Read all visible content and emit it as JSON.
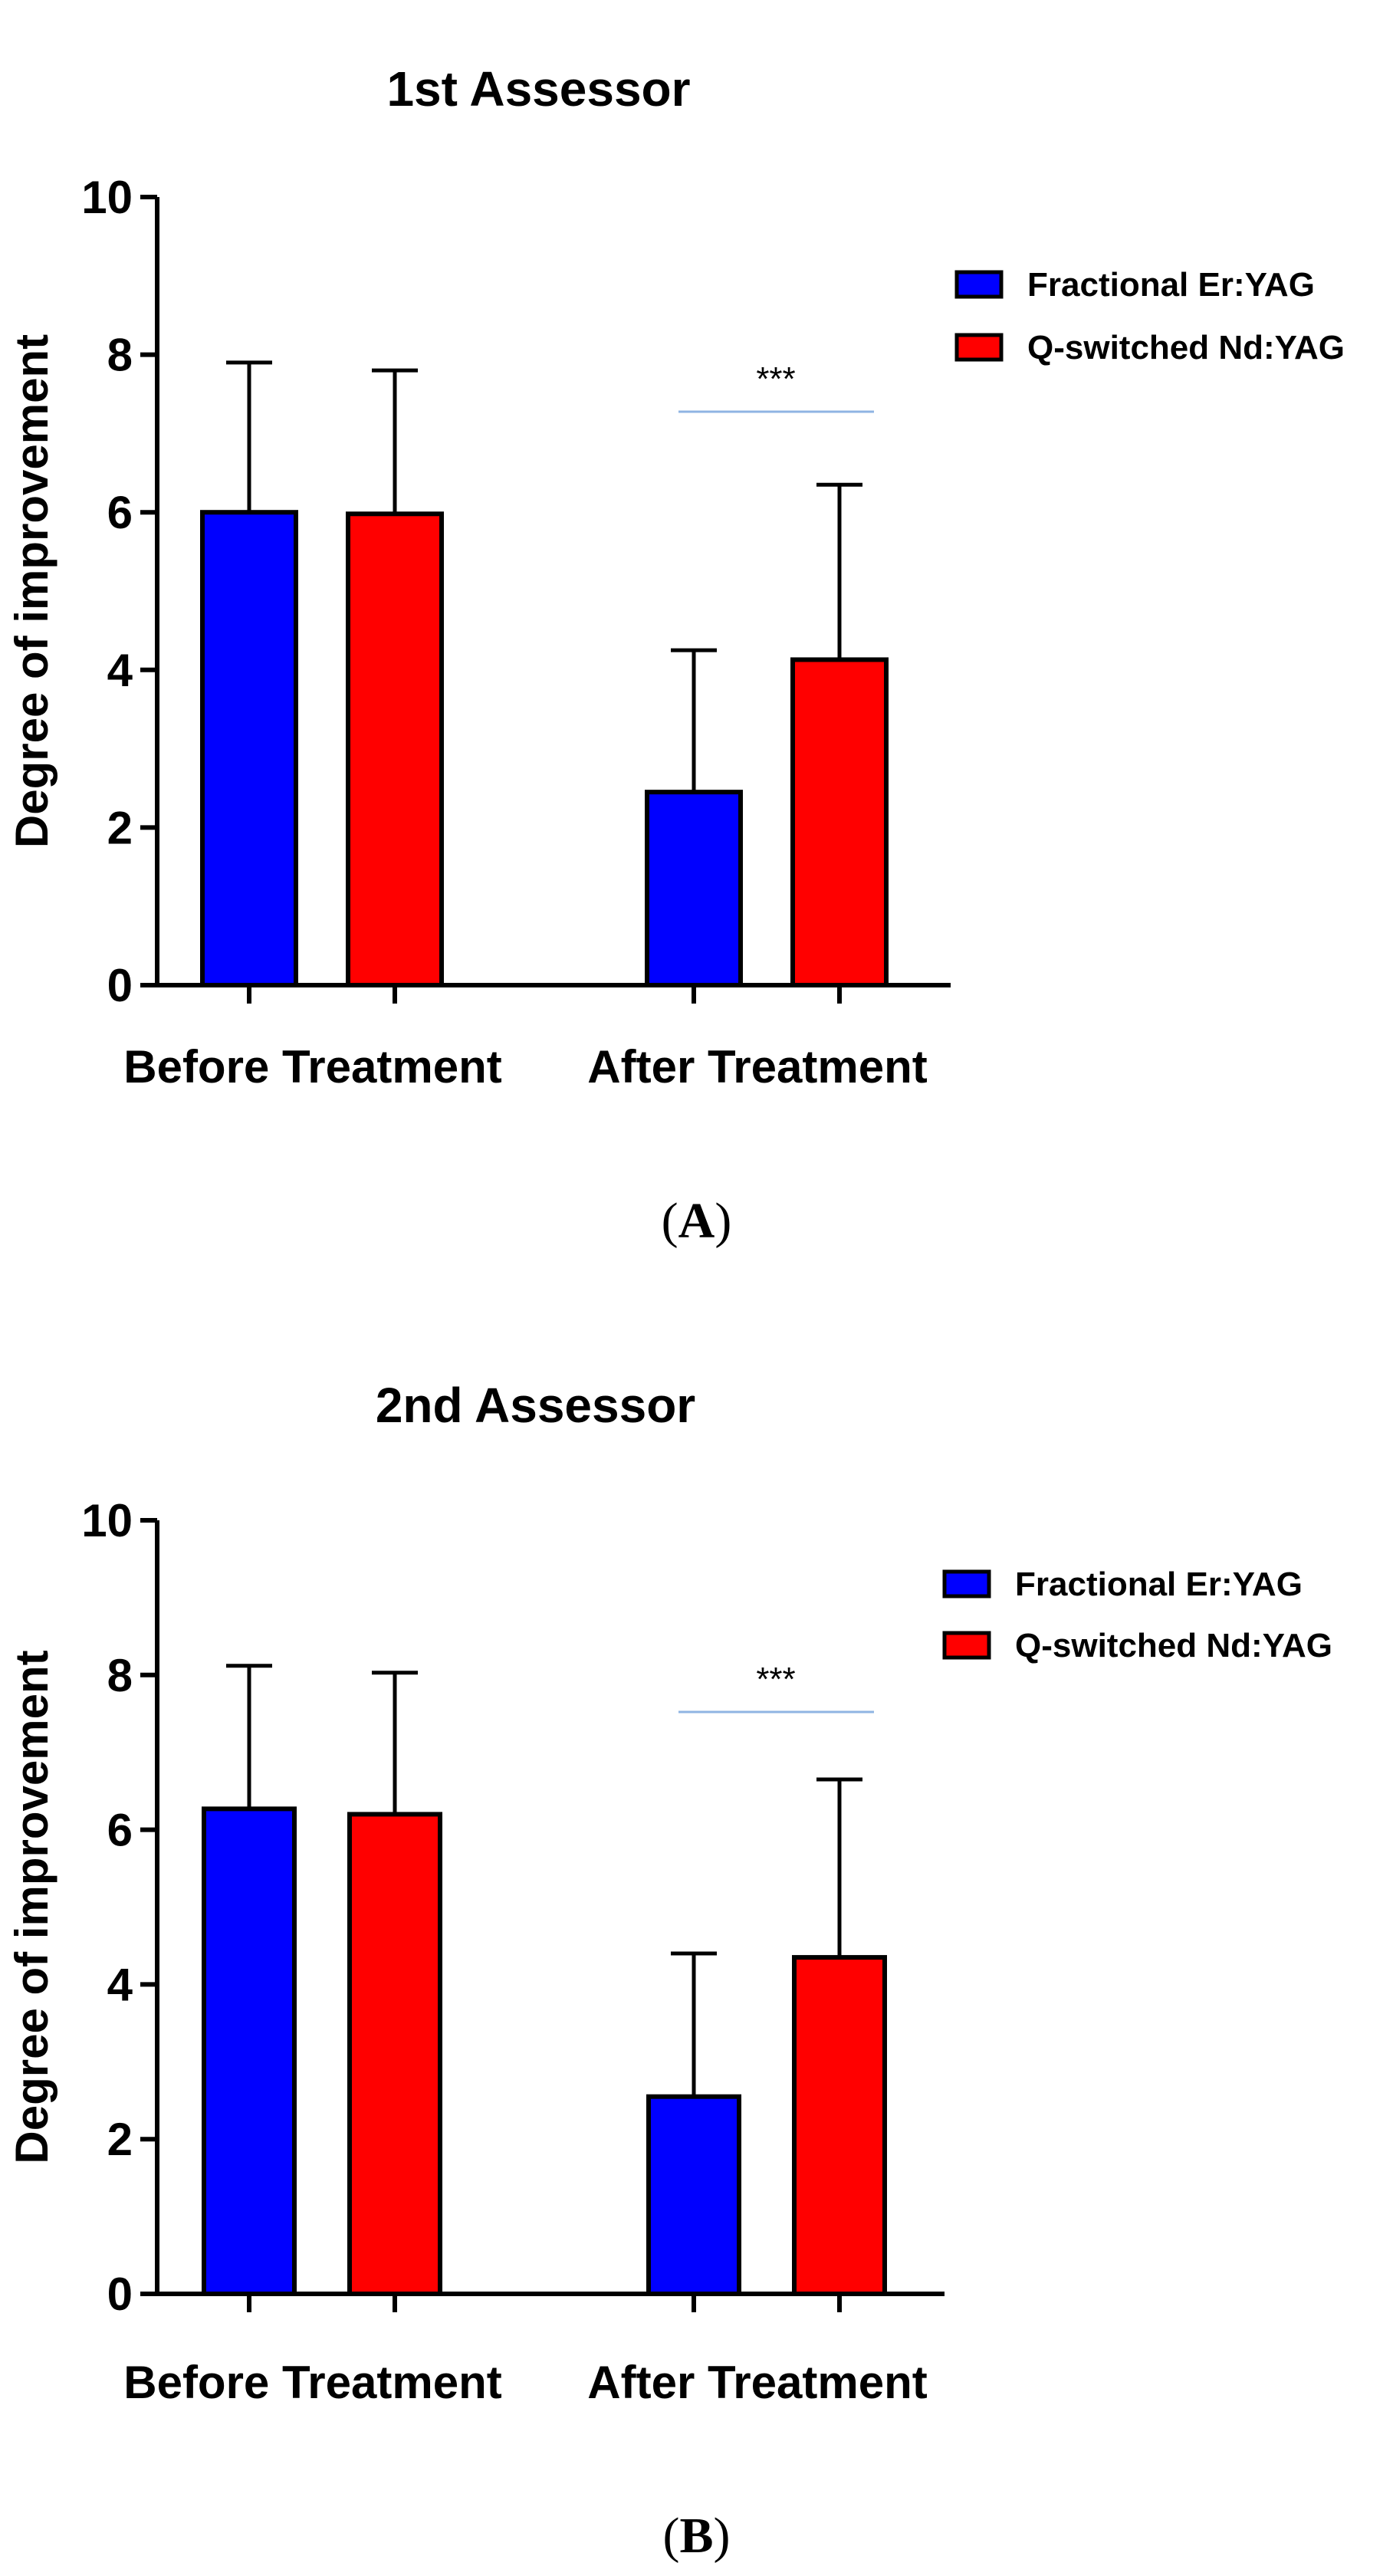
{
  "figure": {
    "panels": [
      "A",
      "B"
    ]
  },
  "colors": {
    "fractional": "#0000ff",
    "qswitched": "#ff0000",
    "significance_line": "#8fb4e3",
    "axis": "#000000"
  },
  "chart_data": [
    {
      "type": "bar",
      "panel_label": "A",
      "title": "1st Assessor",
      "xlabel": "",
      "ylabel": "Degree of improvement",
      "ylim": [
        0,
        10
      ],
      "yticks": [
        "0",
        "2",
        "4",
        "6",
        "8",
        "10"
      ],
      "categories": [
        "Before Treatment",
        "After Treatment"
      ],
      "legend_position": "top-right",
      "series": [
        {
          "name": "Fractional Er:YAG",
          "values": [
            6.0,
            2.45
          ],
          "errors": [
            1.9,
            1.8
          ]
        },
        {
          "name": "Q-switched Nd:YAG",
          "values": [
            5.98,
            4.13
          ],
          "errors": [
            1.82,
            2.22
          ]
        }
      ],
      "annotations": [
        {
          "text": "***",
          "category": "After Treatment"
        }
      ]
    },
    {
      "type": "bar",
      "panel_label": "B",
      "title": "2nd Assessor",
      "xlabel": "",
      "ylabel": "Degree of improvement",
      "ylim": [
        0,
        10
      ],
      "yticks": [
        "0",
        "2",
        "4",
        "6",
        "8",
        "10"
      ],
      "categories": [
        "Before Treatment",
        "After Treatment"
      ],
      "legend_position": "top-right",
      "series": [
        {
          "name": "Fractional Er:YAG",
          "values": [
            6.27,
            2.55
          ],
          "errors": [
            1.85,
            1.85
          ]
        },
        {
          "name": "Q-switched Nd:YAG",
          "values": [
            6.2,
            4.35
          ],
          "errors": [
            1.83,
            2.3
          ]
        }
      ],
      "annotations": [
        {
          "text": "***",
          "category": "After Treatment"
        }
      ]
    }
  ]
}
